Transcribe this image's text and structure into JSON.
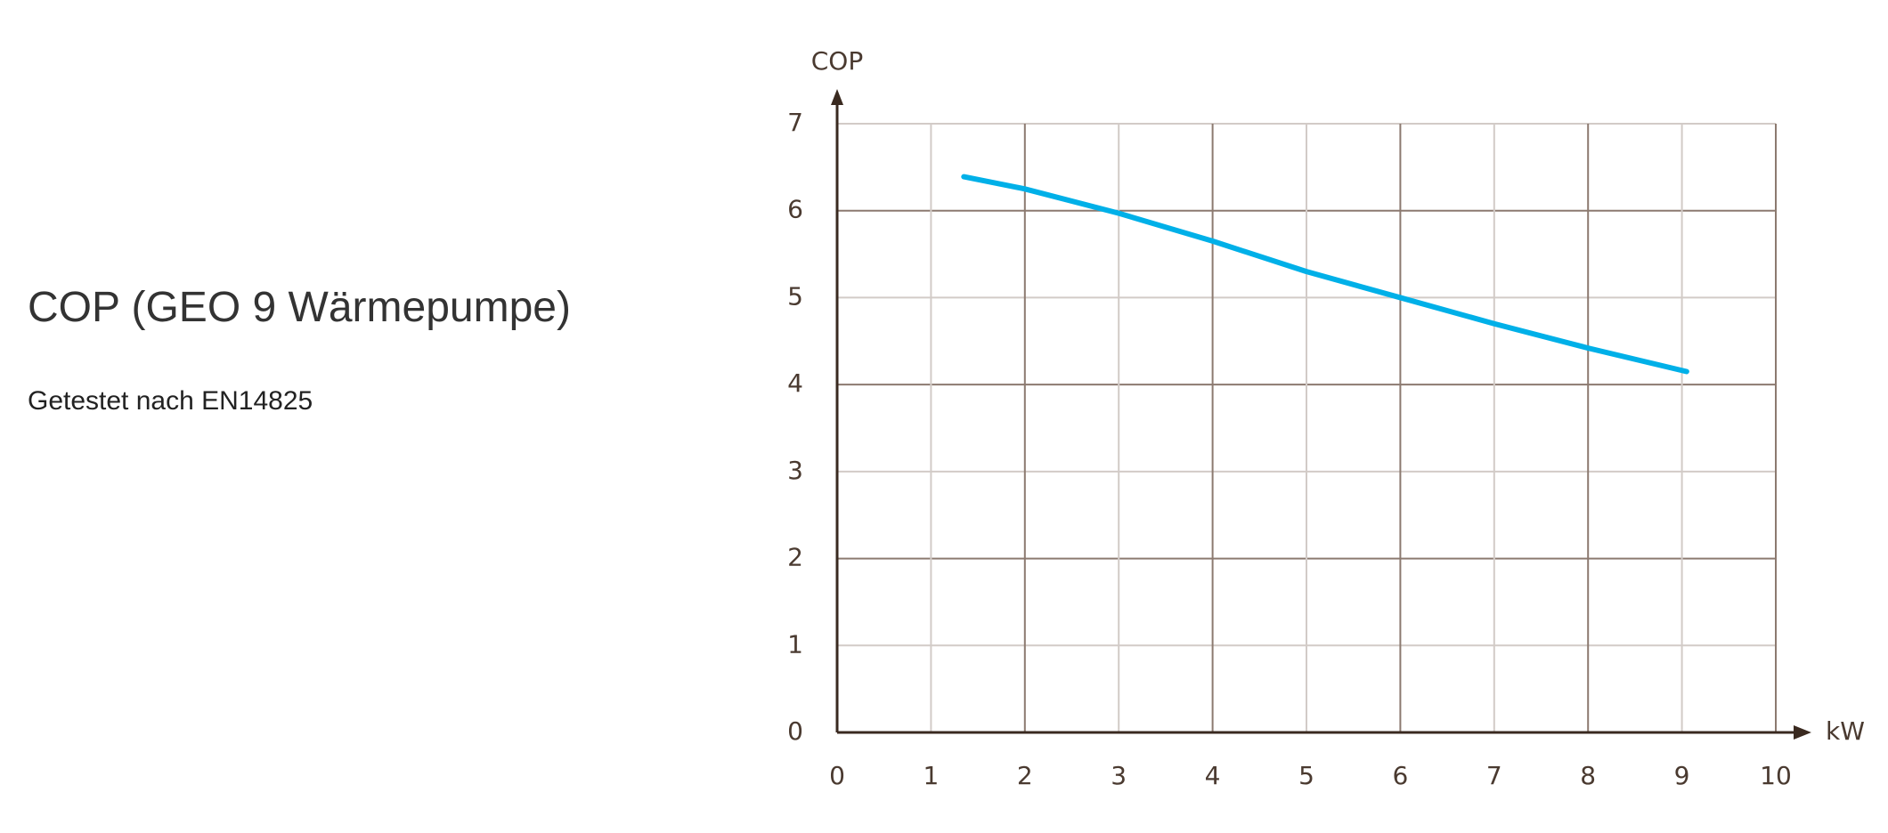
{
  "header": {
    "title": "COP (GEO 9 Wärmepumpe)",
    "subtitle": "Getestet nach EN14825"
  },
  "chart_data": {
    "type": "line",
    "x": [
      1.35,
      2,
      3,
      4,
      5,
      6,
      7,
      8,
      9.05
    ],
    "values": [
      6.39,
      6.25,
      5.97,
      5.65,
      5.3,
      5.0,
      4.7,
      4.42,
      4.15
    ],
    "color": "#00b0e8",
    "y_label": "COP",
    "x_label": "kW",
    "xlim": [
      0,
      10
    ],
    "xticks": [
      0,
      1,
      2,
      3,
      4,
      5,
      6,
      7,
      8,
      9,
      10
    ],
    "ylim": [
      0,
      7
    ],
    "yticks": [
      0,
      1,
      2,
      3,
      4,
      5,
      6,
      7
    ],
    "grid": true
  }
}
